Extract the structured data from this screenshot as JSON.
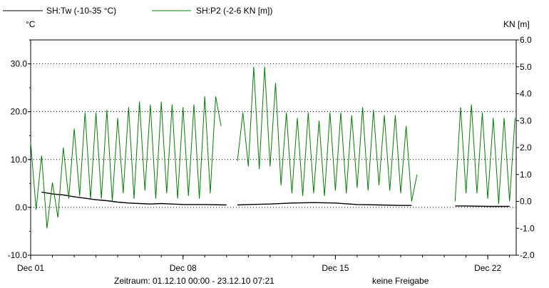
{
  "chart_data": {
    "type": "line",
    "legend": [
      {
        "label": "SH:Tw (-10-35 °C)",
        "color": "#000000"
      },
      {
        "label": "SH:P2 (-2-6 KN [m])",
        "color": "#008000"
      }
    ],
    "y_left": {
      "unit": "°C",
      "range": [
        -10,
        35
      ],
      "ticks": [
        "-10.0",
        "0.0",
        "10.0",
        "20.0",
        "30.0"
      ]
    },
    "y_right": {
      "unit": "KN [m]",
      "range": [
        -2,
        6
      ],
      "ticks": [
        "-2.0",
        "-1.0",
        "0.0",
        "1.0",
        "2.0",
        "3.0",
        "4.0",
        "5.0",
        "6.0"
      ]
    },
    "x": {
      "start": "2010-12-01 00:00",
      "end": "2010-12-23 07:21",
      "tick_labels": [
        "Dec 01",
        "Dec 08",
        "Dec 15",
        "Dec 22"
      ]
    },
    "grid": true,
    "series": [
      {
        "name": "SH:Tw (-10-35 °C)",
        "axis": "left",
        "color": "#000000",
        "segments": [
          [
            [
              "2010-12-01 12:00",
              3.2
            ],
            [
              "2010-12-02 00:00",
              2.8
            ],
            [
              "2010-12-02 12:00",
              2.6
            ],
            [
              "2010-12-03 00:00",
              2.2
            ],
            [
              "2010-12-03 12:00",
              1.9
            ],
            [
              "2010-12-04 00:00",
              1.6
            ],
            [
              "2010-12-04 12:00",
              1.4
            ],
            [
              "2010-12-05 00:00",
              1.1
            ],
            [
              "2010-12-05 12:00",
              0.9
            ],
            [
              "2010-12-06 00:00",
              0.8
            ],
            [
              "2010-12-06 12:00",
              0.7
            ],
            [
              "2010-12-07 00:00",
              0.8
            ],
            [
              "2010-12-07 12:00",
              0.7
            ],
            [
              "2010-12-08 00:00",
              0.6
            ],
            [
              "2010-12-09 00:00",
              0.6
            ],
            [
              "2010-12-10 00:00",
              0.5
            ]
          ],
          [
            [
              "2010-12-10 12:00",
              0.5
            ],
            [
              "2010-12-11 00:00",
              0.6
            ],
            [
              "2010-12-12 00:00",
              0.7
            ],
            [
              "2010-12-13 00:00",
              0.9
            ],
            [
              "2010-12-14 00:00",
              1.0
            ],
            [
              "2010-12-15 00:00",
              0.9
            ],
            [
              "2010-12-16 00:00",
              0.6
            ],
            [
              "2010-12-17 00:00",
              0.5
            ],
            [
              "2010-12-18 00:00",
              0.4
            ],
            [
              "2010-12-18 12:00",
              0.4
            ]
          ],
          [
            [
              "2010-12-20 12:00",
              0.3
            ],
            [
              "2010-12-21 00:00",
              0.3
            ],
            [
              "2010-12-22 00:00",
              0.2
            ],
            [
              "2010-12-23 00:00",
              0.2
            ]
          ]
        ]
      },
      {
        "name": "SH:P2 (-2-6 KN [m])",
        "axis": "right",
        "color": "#008000",
        "segments": [
          [
            [
              "2010-12-01 00:00",
              2.2
            ],
            [
              "2010-12-01 06:00",
              -0.3
            ],
            [
              "2010-12-01 12:00",
              1.7
            ],
            [
              "2010-12-01 18:00",
              -1.0
            ],
            [
              "2010-12-02 00:00",
              0.7
            ],
            [
              "2010-12-02 06:00",
              -0.6
            ],
            [
              "2010-12-02 12:00",
              2.0
            ],
            [
              "2010-12-02 18:00",
              0.1
            ],
            [
              "2010-12-03 00:00",
              2.7
            ],
            [
              "2010-12-03 06:00",
              0.2
            ],
            [
              "2010-12-03 12:00",
              3.3
            ],
            [
              "2010-12-03 18:00",
              0.1
            ],
            [
              "2010-12-04 00:00",
              3.3
            ],
            [
              "2010-12-04 06:00",
              0.1
            ],
            [
              "2010-12-04 12:00",
              3.4
            ],
            [
              "2010-12-04 18:00",
              0.0
            ],
            [
              "2010-12-05 00:00",
              3.1
            ],
            [
              "2010-12-05 06:00",
              0.3
            ],
            [
              "2010-12-05 12:00",
              3.5
            ],
            [
              "2010-12-05 18:00",
              0.1
            ],
            [
              "2010-12-06 00:00",
              3.7
            ],
            [
              "2010-12-06 06:00",
              0.4
            ],
            [
              "2010-12-06 12:00",
              3.6
            ],
            [
              "2010-12-06 18:00",
              0.1
            ],
            [
              "2010-12-07 00:00",
              3.7
            ],
            [
              "2010-12-07 06:00",
              0.3
            ],
            [
              "2010-12-07 12:00",
              3.6
            ],
            [
              "2010-12-07 18:00",
              0.1
            ],
            [
              "2010-12-08 00:00",
              3.5
            ],
            [
              "2010-12-08 06:00",
              0.2
            ],
            [
              "2010-12-08 12:00",
              3.6
            ],
            [
              "2010-12-08 18:00",
              0.1
            ],
            [
              "2010-12-09 00:00",
              3.9
            ],
            [
              "2010-12-09 06:00",
              0.3
            ],
            [
              "2010-12-09 12:00",
              3.9
            ],
            [
              "2010-12-09 18:00",
              2.8
            ]
          ],
          [
            [
              "2010-12-10 12:00",
              1.5
            ],
            [
              "2010-12-10 18:00",
              3.3
            ],
            [
              "2010-12-11 00:00",
              1.3
            ],
            [
              "2010-12-11 06:00",
              5.0
            ],
            [
              "2010-12-11 12:00",
              1.2
            ],
            [
              "2010-12-11 18:00",
              5.0
            ],
            [
              "2010-12-12 00:00",
              1.3
            ],
            [
              "2010-12-12 06:00",
              4.4
            ],
            [
              "2010-12-12 12:00",
              0.6
            ],
            [
              "2010-12-12 18:00",
              3.3
            ],
            [
              "2010-12-13 00:00",
              0.3
            ],
            [
              "2010-12-13 06:00",
              3.1
            ],
            [
              "2010-12-13 12:00",
              0.2
            ],
            [
              "2010-12-13 18:00",
              3.3
            ],
            [
              "2010-12-14 00:00",
              0.3
            ],
            [
              "2010-12-14 06:00",
              3.0
            ],
            [
              "2010-12-14 12:00",
              0.2
            ],
            [
              "2010-12-14 18:00",
              3.3
            ],
            [
              "2010-12-15 00:00",
              0.4
            ],
            [
              "2010-12-15 06:00",
              3.3
            ],
            [
              "2010-12-15 12:00",
              0.3
            ],
            [
              "2010-12-15 18:00",
              3.2
            ],
            [
              "2010-12-16 00:00",
              0.5
            ],
            [
              "2010-12-16 06:00",
              3.5
            ],
            [
              "2010-12-16 12:00",
              0.4
            ],
            [
              "2010-12-16 18:00",
              3.4
            ],
            [
              "2010-12-17 00:00",
              0.6
            ],
            [
              "2010-12-17 06:00",
              3.2
            ],
            [
              "2010-12-17 12:00",
              0.4
            ],
            [
              "2010-12-17 18:00",
              3.2
            ],
            [
              "2010-12-18 00:00",
              0.3
            ],
            [
              "2010-12-18 06:00",
              2.8
            ],
            [
              "2010-12-18 12:00",
              0.0
            ],
            [
              "2010-12-18 18:00",
              1.0
            ]
          ],
          [
            [
              "2010-12-20 12:00",
              0.0
            ],
            [
              "2010-12-20 18:00",
              3.5
            ],
            [
              "2010-12-21 00:00",
              0.3
            ],
            [
              "2010-12-21 06:00",
              3.6
            ],
            [
              "2010-12-21 12:00",
              0.3
            ],
            [
              "2010-12-21 18:00",
              3.3
            ],
            [
              "2010-12-22 00:00",
              0.1
            ],
            [
              "2010-12-22 06:00",
              3.1
            ],
            [
              "2010-12-22 12:00",
              -0.1
            ],
            [
              "2010-12-22 18:00",
              3.1
            ],
            [
              "2010-12-23 00:00",
              0.0
            ],
            [
              "2010-12-23 06:00",
              3.1
            ]
          ]
        ]
      }
    ]
  },
  "footer": {
    "time_range": "Zeitraum: 01.12.10 00:00 - 23.12.10 07:21",
    "release": "keine Freigabe"
  }
}
